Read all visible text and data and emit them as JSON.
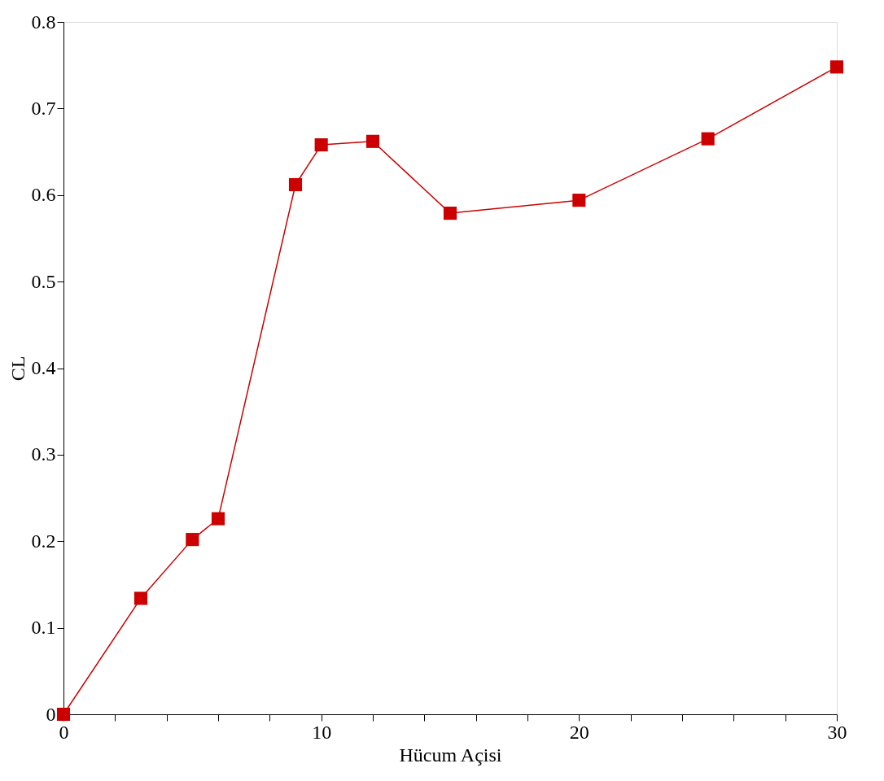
{
  "chart_data": {
    "type": "line",
    "xlabel": "Hücum Açisi",
    "ylabel": "CL",
    "x": [
      0,
      3,
      5,
      6,
      9,
      10,
      12,
      15,
      20,
      25,
      30
    ],
    "series": [
      {
        "color": "#cc0000",
        "values": [
          0,
          0.134,
          0.202,
          0.226,
          0.612,
          0.658,
          0.662,
          0.579,
          0.594,
          0.665,
          0.748
        ]
      }
    ],
    "xlim": [
      0,
      30
    ],
    "xticks": [
      0,
      {
        "value": 2,
        "label": null
      },
      {
        "value": 4,
        "label": null
      },
      {
        "value": 6,
        "label": null
      },
      {
        "value": 8,
        "label": null
      },
      10,
      {
        "value": 12,
        "label": null
      },
      {
        "value": 14,
        "label": null
      },
      {
        "value": 16,
        "label": null
      },
      {
        "value": 18,
        "label": null
      },
      20,
      {
        "value": 22,
        "label": null
      },
      {
        "value": 24,
        "label": null
      },
      {
        "value": 26,
        "label": null
      },
      {
        "value": 28,
        "label": null
      },
      30
    ],
    "ylim": [
      0,
      0.8
    ],
    "yticks": [
      0,
      0.1,
      0.2,
      0.3,
      0.4,
      0.5,
      0.6,
      0.7,
      0.8
    ],
    "grid": false,
    "marker": "square",
    "line_style": "solid"
  }
}
